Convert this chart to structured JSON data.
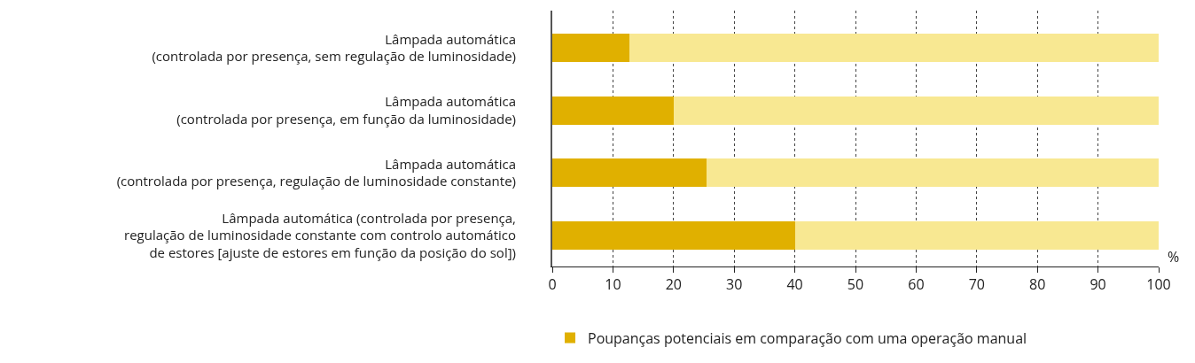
{
  "chart_data": {
    "type": "bar",
    "orientation": "horizontal",
    "stacked": true,
    "categories": [
      "Lâmpada automática\n(controlada por presença, sem regulação de luminosidade)",
      "Lâmpada automática\n(controlada por presença, em função da luminosidade)",
      "Lâmpada automática\n(controlada por presença, regulação de luminosidade constante)",
      "Lâmpada automática (controlada por presença,\nregulação de luminosidade constante com controlo automático\nde estores [ajuste de estores em função da posição do sol])"
    ],
    "series": [
      {
        "name": "Poupanças potenciais em comparação com uma operação manual",
        "color": "#e0b000",
        "values": [
          12.7,
          20,
          25.5,
          40
        ]
      },
      {
        "color": "#f8e892",
        "values": [
          87.3,
          80,
          74.5,
          60
        ]
      }
    ],
    "xlabel": "%",
    "xlim": [
      0,
      100
    ],
    "xticks": [
      0,
      10,
      20,
      30,
      40,
      50,
      60,
      70,
      80,
      90,
      100
    ],
    "grid": "x",
    "legend": "bottom"
  }
}
